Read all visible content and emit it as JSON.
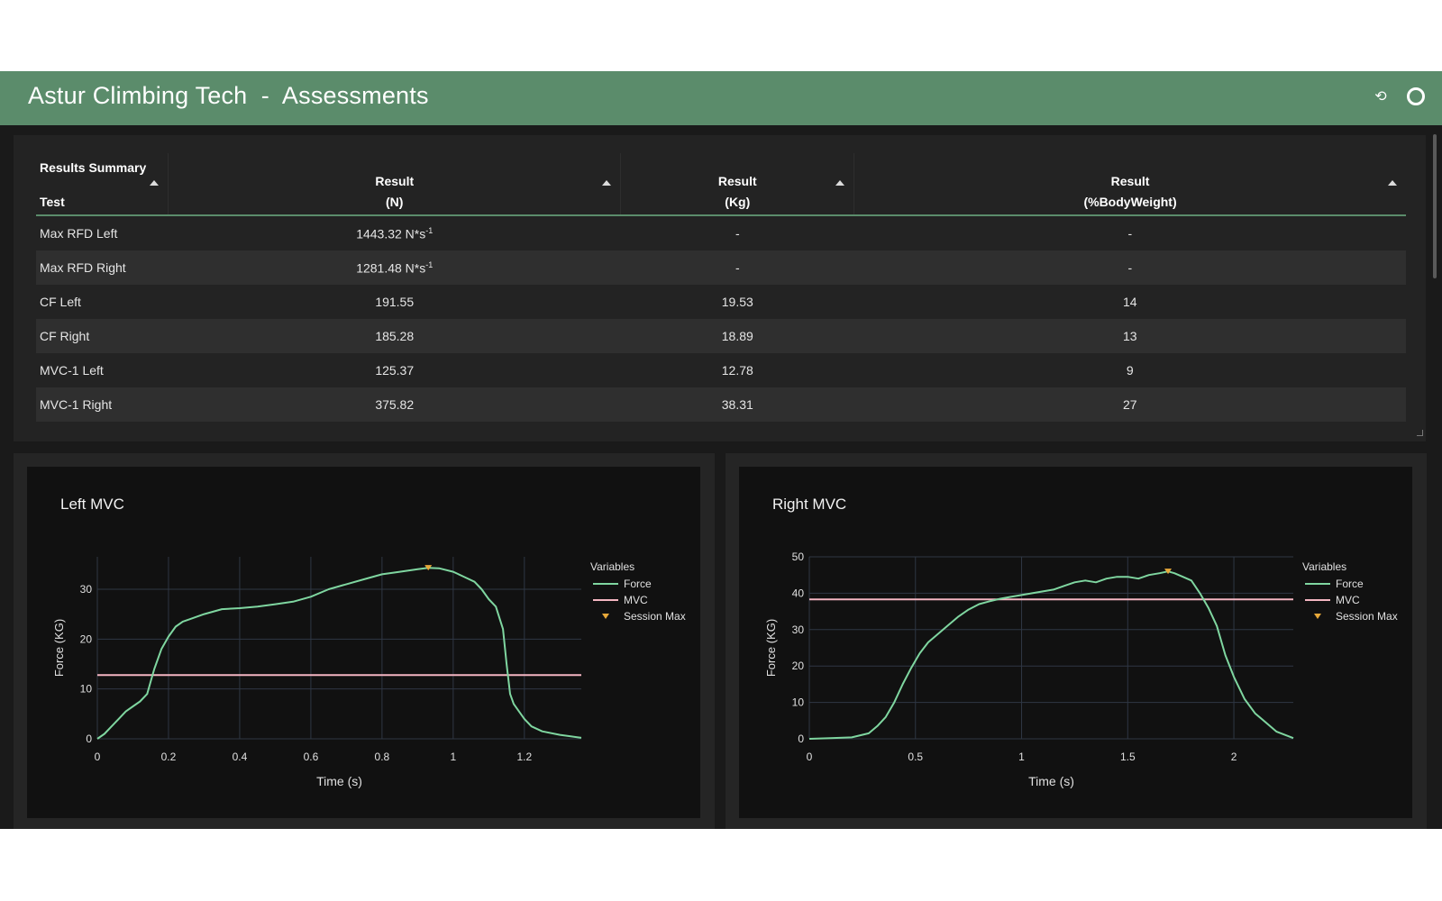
{
  "header": {
    "title": "Astur Climbing Tech  -  Assessments",
    "refresh_icon": "⟲"
  },
  "summary": {
    "group_label": "Results Summary",
    "columns": [
      {
        "line1": "Test",
        "line2": ""
      },
      {
        "line1": "Result",
        "line2": "(N)"
      },
      {
        "line1": "Result",
        "line2": "(Kg)"
      },
      {
        "line1": "Result",
        "line2": "(%BodyWeight)"
      }
    ],
    "rows": [
      {
        "test": "Max RFD Left",
        "n": "1443.32 N*s",
        "n_sup": "-1",
        "kg": "-",
        "bw": "-"
      },
      {
        "test": "Max RFD Right",
        "n": "1281.48 N*s",
        "n_sup": "-1",
        "kg": "-",
        "bw": "-"
      },
      {
        "test": "CF Left",
        "n": "191.55",
        "n_sup": "",
        "kg": "19.53",
        "bw": "14"
      },
      {
        "test": "CF Right",
        "n": "185.28",
        "n_sup": "",
        "kg": "18.89",
        "bw": "13"
      },
      {
        "test": "MVC-1 Left",
        "n": "125.37",
        "n_sup": "",
        "kg": "12.78",
        "bw": "9"
      },
      {
        "test": "MVC-1 Right",
        "n": "375.82",
        "n_sup": "",
        "kg": "38.31",
        "bw": "27"
      }
    ]
  },
  "chart_data": [
    {
      "type": "line",
      "title": "Left MVC",
      "xlabel": "Time (s)",
      "ylabel": "Force (KG)",
      "xlim": [
        0,
        1.36
      ],
      "ylim": [
        0,
        36.5
      ],
      "xticks": [
        0,
        0.2,
        0.4,
        0.6,
        0.8,
        1,
        1.2
      ],
      "xtick_labels": [
        "0",
        "0.2",
        "0.4",
        "0.6",
        "0.8",
        "1",
        "1.2"
      ],
      "yticks": [
        0,
        10,
        20,
        30
      ],
      "ytick_labels": [
        "0",
        "10",
        "20",
        "30"
      ],
      "grid": true,
      "legend": {
        "title": "Variables",
        "position": "right",
        "entries": [
          "Force",
          "MVC",
          "Session Max"
        ]
      },
      "colors": {
        "force": "#7fd6a0",
        "mvc": "#f4b6c2",
        "session_max": "#e8a93a"
      },
      "series": [
        {
          "name": "Force",
          "x": [
            0,
            0.02,
            0.04,
            0.06,
            0.08,
            0.1,
            0.12,
            0.14,
            0.15,
            0.16,
            0.18,
            0.2,
            0.22,
            0.24,
            0.26,
            0.3,
            0.35,
            0.4,
            0.45,
            0.5,
            0.55,
            0.6,
            0.65,
            0.7,
            0.75,
            0.8,
            0.85,
            0.9,
            0.93,
            0.96,
            1.0,
            1.03,
            1.06,
            1.08,
            1.1,
            1.12,
            1.14,
            1.15,
            1.16,
            1.17,
            1.2,
            1.22,
            1.25,
            1.3,
            1.36
          ],
          "y": [
            0,
            1.0,
            2.5,
            4.0,
            5.5,
            6.5,
            7.5,
            9.0,
            11.5,
            14.0,
            18.0,
            20.5,
            22.5,
            23.5,
            24.0,
            25.0,
            26.0,
            26.2,
            26.5,
            27.0,
            27.5,
            28.5,
            30.0,
            31.0,
            32.0,
            33.0,
            33.5,
            34.0,
            34.3,
            34.2,
            33.5,
            32.5,
            31.5,
            30.0,
            28.0,
            26.5,
            22.0,
            15.0,
            9.0,
            7.0,
            4.0,
            2.5,
            1.5,
            0.8,
            0.2
          ]
        },
        {
          "name": "MVC",
          "x": [
            0,
            1.36
          ],
          "y": [
            12.78,
            12.78
          ]
        },
        {
          "name": "Session Max",
          "x": [
            0.93
          ],
          "y": [
            34.3
          ]
        }
      ]
    },
    {
      "type": "line",
      "title": "Right MVC",
      "xlabel": "Time (s)",
      "ylabel": "Force (KG)",
      "xlim": [
        0,
        2.28
      ],
      "ylim": [
        0,
        50
      ],
      "xticks": [
        0,
        0.5,
        1,
        1.5,
        2
      ],
      "xtick_labels": [
        "0",
        "0.5",
        "1",
        "1.5",
        "2"
      ],
      "yticks": [
        0,
        10,
        20,
        30,
        40,
        50
      ],
      "ytick_labels": [
        "0",
        "10",
        "20",
        "30",
        "40",
        "50"
      ],
      "grid": true,
      "legend": {
        "title": "Variables",
        "position": "right",
        "entries": [
          "Force",
          "MVC",
          "Session Max"
        ]
      },
      "colors": {
        "force": "#7fd6a0",
        "mvc": "#f4b6c2",
        "session_max": "#e8a93a"
      },
      "series": [
        {
          "name": "Force",
          "x": [
            0,
            0.1,
            0.2,
            0.28,
            0.32,
            0.36,
            0.4,
            0.44,
            0.48,
            0.52,
            0.56,
            0.6,
            0.65,
            0.7,
            0.75,
            0.8,
            0.85,
            0.9,
            0.95,
            1.0,
            1.05,
            1.1,
            1.15,
            1.2,
            1.25,
            1.3,
            1.35,
            1.4,
            1.45,
            1.5,
            1.55,
            1.6,
            1.65,
            1.69,
            1.72,
            1.76,
            1.8,
            1.84,
            1.88,
            1.92,
            1.96,
            2.0,
            2.05,
            2.1,
            2.15,
            2.2,
            2.28
          ],
          "y": [
            0,
            0.2,
            0.4,
            1.5,
            3.5,
            6.0,
            10.0,
            15.0,
            19.5,
            23.5,
            26.5,
            28.5,
            31.0,
            33.5,
            35.5,
            37.0,
            37.8,
            38.5,
            39.0,
            39.5,
            40.0,
            40.5,
            41.0,
            42.0,
            43.0,
            43.5,
            43.0,
            44.0,
            44.5,
            44.5,
            44.0,
            45.0,
            45.5,
            46.0,
            45.5,
            44.5,
            43.5,
            40.0,
            36.0,
            31.0,
            23.0,
            17.0,
            11.0,
            7.0,
            4.5,
            2.0,
            0.2
          ]
        },
        {
          "name": "MVC",
          "x": [
            0,
            2.28
          ],
          "y": [
            38.31,
            38.31
          ]
        },
        {
          "name": "Session Max",
          "x": [
            1.69
          ],
          "y": [
            46.0
          ]
        }
      ]
    }
  ]
}
